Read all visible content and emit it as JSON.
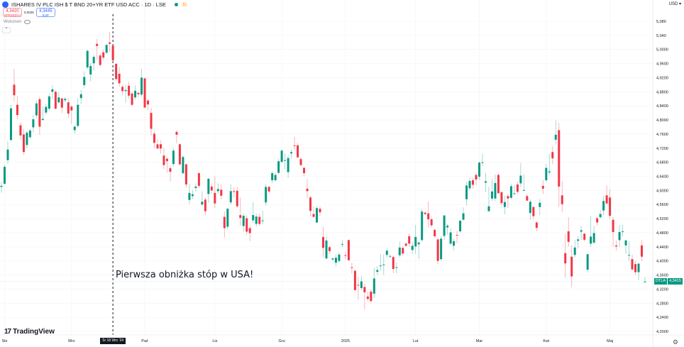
{
  "header": {
    "title": "ISHARES IV PLC ISH $ T BND 20+YR ETF USD ACC · 1D · LSE",
    "market_badge": "D",
    "sell_price": "4,3420",
    "sell_label": "SPRZEDAJ",
    "spread": "0,0025",
    "buy_price": "4,3445",
    "buy_label": "KUP",
    "volume_label": "Wolumen",
    "currency": "USD"
  },
  "annotation": "Pierwsza obniżka stóp w USA!",
  "branding": "TradingView",
  "last_price": {
    "symbol": "DTLA",
    "value": "4,3415",
    "color": "#089981"
  },
  "colors": {
    "up": "#089981",
    "down": "#f23645"
  },
  "chart_data": {
    "type": "candlestick",
    "title": "",
    "ylim": [
      4.2,
      5.08
    ],
    "grid": true,
    "y_ticks": [
      "5,080",
      "5,040",
      "5,0000",
      "4,9600",
      "4,9200",
      "4,8800",
      "4,8400",
      "4,8000",
      "4,7600",
      "4,7200",
      "4,6800",
      "4,6400",
      "4,6000",
      "4,5600",
      "4,5200",
      "4,4800",
      "4,4400",
      "4,4000",
      "4,3600",
      "4,3200",
      "4,2800",
      "4,2400",
      "4,2000"
    ],
    "x_ticks": [
      {
        "label": "Sie",
        "index": 1
      },
      {
        "label": "Wrz",
        "index": 22
      },
      {
        "label": "Paź",
        "index": 45
      },
      {
        "label": "Lis",
        "index": 67
      },
      {
        "label": "Gru",
        "index": 88
      },
      {
        "label": "2025",
        "index": 108
      },
      {
        "label": "Lut",
        "index": 130
      },
      {
        "label": "Mar",
        "index": 150
      },
      {
        "label": "Kwi",
        "index": 171
      },
      {
        "label": "Maj",
        "index": 191
      }
    ],
    "marker": {
      "label": "Śr 18 Wrz '24",
      "index": 35
    },
    "ohlc": [
      [
        4.61,
        4.624,
        4.594,
        4.613
      ],
      [
        4.619,
        4.672,
        4.617,
        4.667
      ],
      [
        4.686,
        4.74,
        4.676,
        4.716
      ],
      [
        4.743,
        4.843,
        4.74,
        4.833
      ],
      [
        4.9,
        4.945,
        4.852,
        4.87
      ],
      [
        4.843,
        4.867,
        4.802,
        4.814
      ],
      [
        4.785,
        4.793,
        4.745,
        4.756
      ],
      [
        4.759,
        4.775,
        4.701,
        4.709
      ],
      [
        4.729,
        4.77,
        4.72,
        4.764
      ],
      [
        4.751,
        4.775,
        4.745,
        4.77
      ],
      [
        4.779,
        4.815,
        4.765,
        4.802
      ],
      [
        4.813,
        4.855,
        4.805,
        4.847
      ],
      [
        4.859,
        4.865,
        4.758,
        4.781
      ],
      [
        4.8,
        4.838,
        4.798,
        4.803
      ],
      [
        4.821,
        4.845,
        4.815,
        4.837
      ],
      [
        4.832,
        4.875,
        4.825,
        4.867
      ],
      [
        4.88,
        4.899,
        4.86,
        4.887
      ],
      [
        4.88,
        4.884,
        4.83,
        4.832
      ],
      [
        4.85,
        4.88,
        4.845,
        4.864
      ],
      [
        4.861,
        4.863,
        4.82,
        4.835
      ],
      [
        4.856,
        4.865,
        4.85,
        4.86
      ],
      [
        4.85,
        4.861,
        4.806,
        4.818
      ],
      [
        4.838,
        4.842,
        4.788,
        4.827
      ],
      [
        4.771,
        4.785,
        4.761,
        4.781
      ],
      [
        4.783,
        4.862,
        4.778,
        4.843
      ],
      [
        4.862,
        4.885,
        4.845,
        4.873
      ],
      [
        4.899,
        4.938,
        4.89,
        4.922
      ],
      [
        4.949,
        5.0,
        4.945,
        4.996
      ],
      [
        4.929,
        4.962,
        4.909,
        4.953
      ],
      [
        4.961,
        4.985,
        4.94,
        4.979
      ],
      [
        5.016,
        5.03,
        4.97,
        5.01
      ],
      [
        4.983,
        4.99,
        4.95,
        4.956
      ],
      [
        4.992,
        5.0,
        4.97,
        4.977
      ],
      [
        4.991,
        5.015,
        4.985,
        5.013
      ],
      [
        5.02,
        5.05,
        4.993,
        5.016
      ],
      [
        5.011,
        5.013,
        4.965,
        4.969
      ],
      [
        4.959,
        4.962,
        4.91,
        4.916
      ],
      [
        4.931,
        4.95,
        4.895,
        4.904
      ],
      [
        4.894,
        4.9,
        4.87,
        4.882
      ],
      [
        4.882,
        4.9,
        4.849,
        4.885
      ],
      [
        4.897,
        4.908,
        4.86,
        4.869
      ],
      [
        4.875,
        4.88,
        4.838,
        4.843
      ],
      [
        4.864,
        4.898,
        4.858,
        4.883
      ],
      [
        4.877,
        4.88,
        4.865,
        4.873
      ],
      [
        4.872,
        4.945,
        4.866,
        4.92
      ],
      [
        4.918,
        4.92,
        4.835,
        4.835
      ],
      [
        4.855,
        4.86,
        4.828,
        4.844
      ],
      [
        4.82,
        4.835,
        4.755,
        4.775
      ],
      [
        4.761,
        4.768,
        4.72,
        4.735
      ],
      [
        4.731,
        4.745,
        4.718,
        4.719
      ],
      [
        4.731,
        4.742,
        4.705,
        4.719
      ],
      [
        4.699,
        4.72,
        4.66,
        4.672
      ],
      [
        4.69,
        4.693,
        4.65,
        4.683
      ],
      [
        4.663,
        4.67,
        4.625,
        4.653
      ],
      [
        4.675,
        4.72,
        4.668,
        4.713
      ],
      [
        4.766,
        4.771,
        4.734,
        4.758
      ],
      [
        4.731,
        4.733,
        4.672,
        4.674
      ],
      [
        4.649,
        4.7,
        4.645,
        4.695
      ],
      [
        4.674,
        4.676,
        4.608,
        4.617
      ],
      [
        4.573,
        4.618,
        4.562,
        4.593
      ],
      [
        4.584,
        4.6,
        4.576,
        4.589
      ],
      [
        4.607,
        4.62,
        4.598,
        4.611
      ],
      [
        4.649,
        4.651,
        4.607,
        4.613
      ],
      [
        4.56,
        4.598,
        4.555,
        4.568
      ],
      [
        4.574,
        4.58,
        4.53,
        4.541
      ],
      [
        4.59,
        4.635,
        4.565,
        4.633
      ],
      [
        4.611,
        4.62,
        4.59,
        4.6
      ],
      [
        4.593,
        4.64,
        4.55,
        4.563
      ],
      [
        4.598,
        4.62,
        4.59,
        4.604
      ],
      [
        4.602,
        4.618,
        4.575,
        4.585
      ],
      [
        4.525,
        4.54,
        4.466,
        4.493
      ],
      [
        4.497,
        4.55,
        4.49,
        4.548
      ],
      [
        4.566,
        4.618,
        4.56,
        4.598
      ],
      [
        4.598,
        4.61,
        4.58,
        4.597
      ],
      [
        4.599,
        4.61,
        4.55,
        4.555
      ],
      [
        4.53,
        4.58,
        4.5,
        4.522
      ],
      [
        4.499,
        4.535,
        4.483,
        4.528
      ],
      [
        4.521,
        4.529,
        4.475,
        4.483
      ],
      [
        4.493,
        4.5,
        4.456,
        4.479
      ],
      [
        4.515,
        4.566,
        4.508,
        4.53
      ],
      [
        4.505,
        4.535,
        4.497,
        4.526
      ],
      [
        4.525,
        4.535,
        4.5,
        4.505
      ],
      [
        4.513,
        4.542,
        4.505,
        4.515
      ],
      [
        4.566,
        4.618,
        4.557,
        4.61
      ],
      [
        4.61,
        4.614,
        4.59,
        4.597
      ],
      [
        4.629,
        4.655,
        4.62,
        4.649
      ],
      [
        4.629,
        4.65,
        4.625,
        4.644
      ],
      [
        4.65,
        4.69,
        4.645,
        4.683
      ],
      [
        4.681,
        4.715,
        4.678,
        4.713
      ],
      [
        4.685,
        4.705,
        4.66,
        4.686
      ],
      [
        4.652,
        4.7,
        4.636,
        4.692
      ],
      [
        4.705,
        4.715,
        4.69,
        4.709
      ],
      [
        4.728,
        4.752,
        4.715,
        4.726
      ],
      [
        4.728,
        4.735,
        4.692,
        4.694
      ],
      [
        4.689,
        4.693,
        4.668,
        4.672
      ],
      [
        4.664,
        4.667,
        4.64,
        4.649
      ],
      [
        4.605,
        4.632,
        4.578,
        4.598
      ],
      [
        4.58,
        4.585,
        4.526,
        4.542
      ],
      [
        4.533,
        4.555,
        4.523,
        4.525
      ],
      [
        4.509,
        4.556,
        4.508,
        4.55
      ],
      [
        4.548,
        4.555,
        4.528,
        4.538
      ],
      [
        4.468,
        4.497,
        4.41,
        4.437
      ],
      [
        4.407,
        4.47,
        4.405,
        4.458
      ],
      [
        4.439,
        4.442,
        4.42,
        4.428
      ],
      [
        4.404,
        4.41,
        4.4,
        4.407
      ],
      [
        4.395,
        4.418,
        4.385,
        4.409
      ],
      [
        4.4,
        4.425,
        4.395,
        4.418
      ],
      [
        4.446,
        4.46,
        4.44,
        4.448
      ],
      [
        4.416,
        4.425,
        4.405,
        4.414
      ],
      [
        4.459,
        4.461,
        4.4,
        4.402
      ],
      [
        4.382,
        4.395,
        4.365,
        4.38
      ],
      [
        4.372,
        4.375,
        4.317,
        4.317
      ],
      [
        4.332,
        4.355,
        4.29,
        4.33
      ],
      [
        4.323,
        4.358,
        4.318,
        4.342
      ],
      [
        4.326,
        4.335,
        4.262,
        4.311
      ],
      [
        4.299,
        4.312,
        4.285,
        4.292
      ],
      [
        4.313,
        4.32,
        4.28,
        4.286
      ],
      [
        4.307,
        4.38,
        4.295,
        4.35
      ],
      [
        4.369,
        4.385,
        4.36,
        4.374
      ],
      [
        4.385,
        4.42,
        4.372,
        4.387
      ],
      [
        4.388,
        4.418,
        4.36,
        4.39
      ],
      [
        4.417,
        4.436,
        4.41,
        4.429
      ],
      [
        4.412,
        4.418,
        4.408,
        4.414
      ],
      [
        4.411,
        4.415,
        4.365,
        4.377
      ],
      [
        4.38,
        4.395,
        4.365,
        4.382
      ],
      [
        4.416,
        4.455,
        4.41,
        4.438
      ],
      [
        4.437,
        4.441,
        4.415,
        4.421
      ],
      [
        4.449,
        4.452,
        4.44,
        4.443
      ],
      [
        4.47,
        4.478,
        4.44,
        4.449
      ],
      [
        4.431,
        4.455,
        4.42,
        4.443
      ],
      [
        4.441,
        4.502,
        4.42,
        4.468
      ],
      [
        4.447,
        4.455,
        4.405,
        4.452
      ],
      [
        4.459,
        4.548,
        4.455,
        4.54
      ],
      [
        4.537,
        4.54,
        4.53,
        4.533
      ],
      [
        4.535,
        4.568,
        4.495,
        4.518
      ],
      [
        4.518,
        4.525,
        4.495,
        4.501
      ],
      [
        4.488,
        4.492,
        4.465,
        4.47
      ],
      [
        4.461,
        4.465,
        4.39,
        4.4
      ],
      [
        4.405,
        4.47,
        4.4,
        4.463
      ],
      [
        4.471,
        4.53,
        4.46,
        4.529
      ],
      [
        4.495,
        4.505,
        4.475,
        4.5
      ],
      [
        4.449,
        4.492,
        4.445,
        4.481
      ],
      [
        4.443,
        4.463,
        4.43,
        4.456
      ],
      [
        4.474,
        4.485,
        4.45,
        4.472
      ],
      [
        4.484,
        4.515,
        4.48,
        4.514
      ],
      [
        4.517,
        4.552,
        4.514,
        4.535
      ],
      [
        4.575,
        4.624,
        4.557,
        4.614
      ],
      [
        4.606,
        4.635,
        4.6,
        4.627
      ],
      [
        4.629,
        4.636,
        4.605,
        4.616
      ],
      [
        4.644,
        4.65,
        4.615,
        4.631
      ],
      [
        4.639,
        4.682,
        4.63,
        4.679
      ],
      [
        4.678,
        4.704,
        4.67,
        4.68
      ],
      [
        4.622,
        4.65,
        4.595,
        4.626
      ],
      [
        4.541,
        4.61,
        4.54,
        4.555
      ],
      [
        4.577,
        4.632,
        4.57,
        4.597
      ],
      [
        4.577,
        4.645,
        4.57,
        4.621
      ],
      [
        4.644,
        4.65,
        4.592,
        4.592
      ],
      [
        4.595,
        4.598,
        4.557,
        4.564
      ],
      [
        4.553,
        4.585,
        4.532,
        4.567
      ],
      [
        4.584,
        4.59,
        4.55,
        4.577
      ],
      [
        4.579,
        4.618,
        4.575,
        4.612
      ],
      [
        4.59,
        4.615,
        4.585,
        4.592
      ],
      [
        4.617,
        4.625,
        4.59,
        4.596
      ],
      [
        4.62,
        4.678,
        4.61,
        4.642
      ],
      [
        4.601,
        4.646,
        4.598,
        4.601
      ],
      [
        4.584,
        4.59,
        4.57,
        4.571
      ],
      [
        4.536,
        4.575,
        4.517,
        4.568
      ],
      [
        4.553,
        4.556,
        4.518,
        4.527
      ],
      [
        4.509,
        4.513,
        4.485,
        4.494
      ],
      [
        4.553,
        4.576,
        4.53,
        4.565
      ],
      [
        4.613,
        4.63,
        4.59,
        4.605
      ],
      [
        4.629,
        4.675,
        4.625,
        4.664
      ],
      [
        4.651,
        4.703,
        4.645,
        4.654
      ],
      [
        4.709,
        4.725,
        4.675,
        4.691
      ],
      [
        4.744,
        4.799,
        4.73,
        4.758
      ],
      [
        4.771,
        4.792,
        4.553,
        4.611
      ],
      [
        4.586,
        4.626,
        4.538,
        4.561
      ],
      [
        4.422,
        4.477,
        4.352,
        4.393
      ],
      [
        4.484,
        4.524,
        4.44,
        4.454
      ],
      [
        4.412,
        4.445,
        4.325,
        4.356
      ],
      [
        4.417,
        4.46,
        4.41,
        4.438
      ],
      [
        4.457,
        4.47,
        4.435,
        4.461
      ],
      [
        4.483,
        4.5,
        4.46,
        4.487
      ],
      [
        4.477,
        4.48,
        4.455,
        4.46
      ],
      [
        4.375,
        4.42,
        4.367,
        4.419
      ],
      [
        4.449,
        4.528,
        4.44,
        4.469
      ],
      [
        4.452,
        4.5,
        4.448,
        4.479
      ],
      [
        4.521,
        4.525,
        4.5,
        4.509
      ],
      [
        4.524,
        4.545,
        4.52,
        4.533
      ],
      [
        4.543,
        4.585,
        4.53,
        4.57
      ],
      [
        4.586,
        4.614,
        4.56,
        4.563
      ],
      [
        4.58,
        4.603,
        4.52,
        4.528
      ],
      [
        4.517,
        4.525,
        4.44,
        4.482
      ],
      [
        4.444,
        4.458,
        4.43,
        4.441
      ],
      [
        4.459,
        4.502,
        4.44,
        4.482
      ],
      [
        4.484,
        4.502,
        4.47,
        4.484
      ],
      [
        4.444,
        4.46,
        4.42,
        4.458
      ],
      [
        4.417,
        4.455,
        4.4,
        4.417
      ],
      [
        4.405,
        4.418,
        4.372,
        4.376
      ],
      [
        4.391,
        4.4,
        4.36,
        4.368
      ],
      [
        4.368,
        4.395,
        4.345,
        4.392
      ],
      [
        4.444,
        4.46,
        4.4,
        4.412
      ],
      [
        4.34,
        4.355,
        4.338,
        4.3415
      ]
    ]
  }
}
